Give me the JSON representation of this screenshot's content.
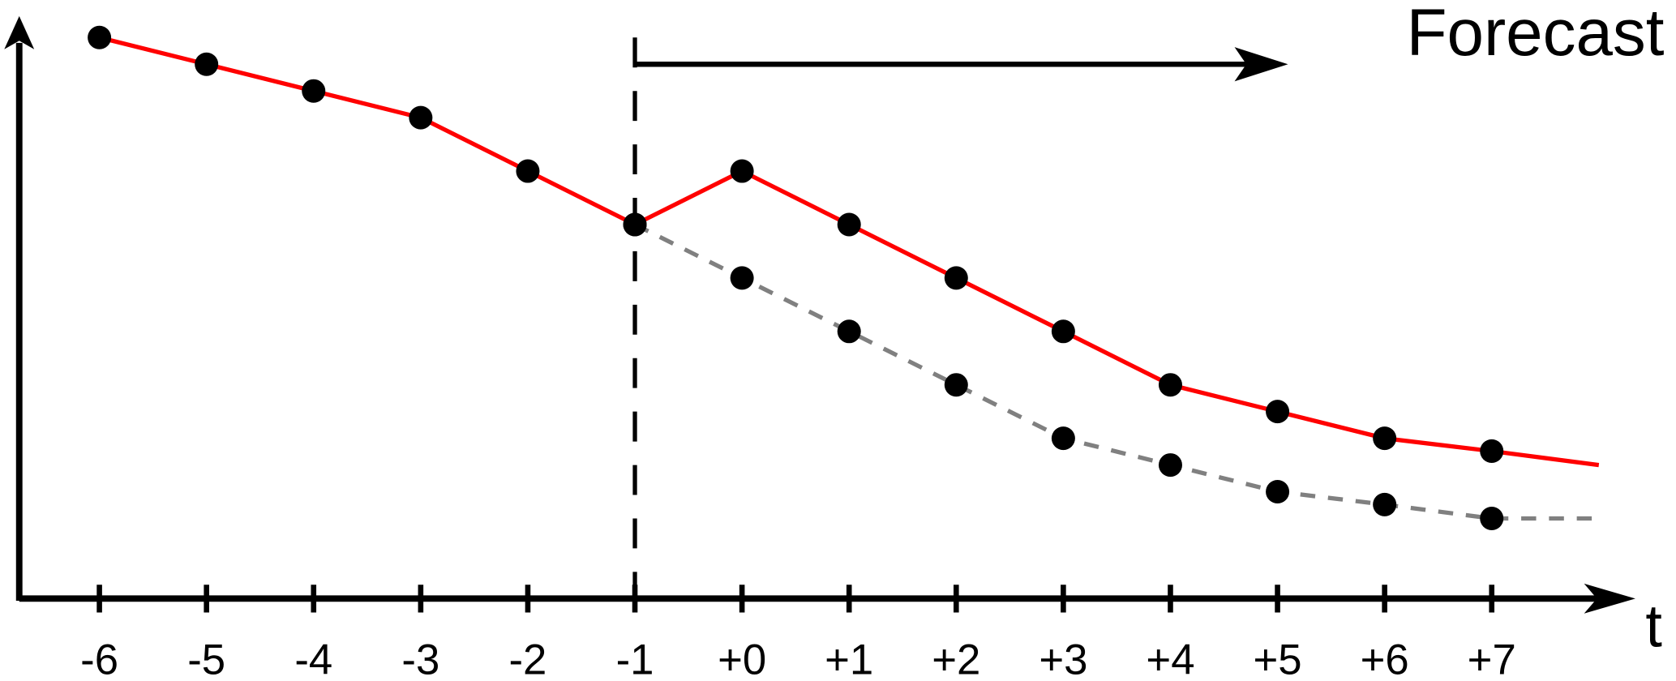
{
  "chart_data": {
    "type": "line",
    "annotation": "Forecast",
    "x_label": "t",
    "categories": [
      "-6",
      "-5",
      "-4",
      "-3",
      "-2",
      "-1",
      "+0",
      "+1",
      "+2",
      "+3",
      "+4",
      "+5",
      "+6",
      "+7",
      null
    ],
    "series": [
      {
        "color": "#ff0000",
        "dash": false,
        "values": [
          105,
          100,
          95,
          90,
          80,
          70,
          80,
          70,
          60,
          50,
          40,
          35,
          30,
          27.6,
          25
        ]
      },
      {
        "color": "#808080",
        "dash": true,
        "values": [
          null,
          null,
          null,
          null,
          null,
          70,
          60,
          50,
          40,
          30,
          25,
          20,
          17.6,
          15,
          15
        ]
      }
    ],
    "ylim": [
      0,
      109
    ]
  }
}
